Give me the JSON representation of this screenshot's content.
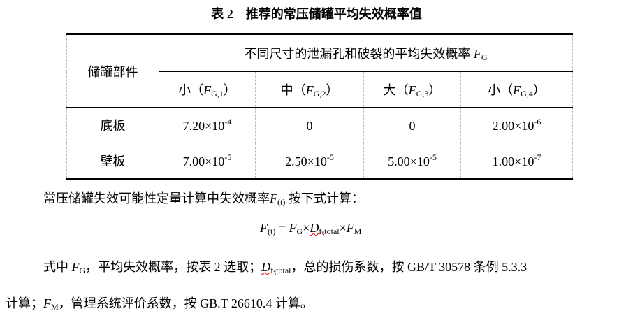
{
  "title": {
    "number": "表 2",
    "text": "推荐的常压储罐平均失效概率值"
  },
  "table": {
    "corner": "储罐部件",
    "group_header": {
      "text": "不同尺寸的泄漏孔和破裂的平均失效概率",
      "symbol": "F",
      "symbol_sub": "G"
    },
    "columns": [
      {
        "label": "小（",
        "symbol": "F",
        "sub": "G,1",
        "close": "）"
      },
      {
        "label": "中（",
        "symbol": "F",
        "sub": "G,2",
        "close": "）"
      },
      {
        "label": "大（",
        "symbol": "F",
        "sub": "G,3",
        "close": "）"
      },
      {
        "label": "小（",
        "symbol": "F",
        "sub": "G,4",
        "close": "）"
      }
    ],
    "rows": [
      {
        "part": "底板",
        "values": [
          {
            "m": "7.20×10",
            "e": "-4"
          },
          {
            "m": "0",
            "e": ""
          },
          {
            "m": "0",
            "e": ""
          },
          {
            "m": "2.00×10",
            "e": "-6"
          }
        ]
      },
      {
        "part": "壁板",
        "values": [
          {
            "m": "7.00×10",
            "e": "-5"
          },
          {
            "m": "2.50×10",
            "e": "-5"
          },
          {
            "m": "5.00×10",
            "e": "-5"
          },
          {
            "m": "1.00×10",
            "e": "-7"
          }
        ]
      }
    ]
  },
  "para1": {
    "text": "常压储罐失效可能性定量计算中失效概率",
    "symbol": "F",
    "sub": "(t)",
    "tail": "按下式计算："
  },
  "formula": {
    "F": "F",
    "F_sub": "(t)",
    "eq": " = ",
    "FG": "F",
    "FG_sub": "G",
    "x": "×",
    "D": "D",
    "D_sub": "f-total",
    "FM": "F",
    "FM_sub": "M"
  },
  "para2": {
    "a": "式中 ",
    "FG": "F",
    "FG_sub": "G",
    "b": "，平均失效概率，按表 2 选取；",
    "D": "D",
    "D_sub": "f-total",
    "c": "，总的损伤系数，按 GB/T 30578 条例 5.3.3"
  },
  "para3": {
    "a": "计算；",
    "FM": "F",
    "FM_sub": "M",
    "b": "，管理系统评价系数，按 GB.T 26610.4 计算。"
  }
}
